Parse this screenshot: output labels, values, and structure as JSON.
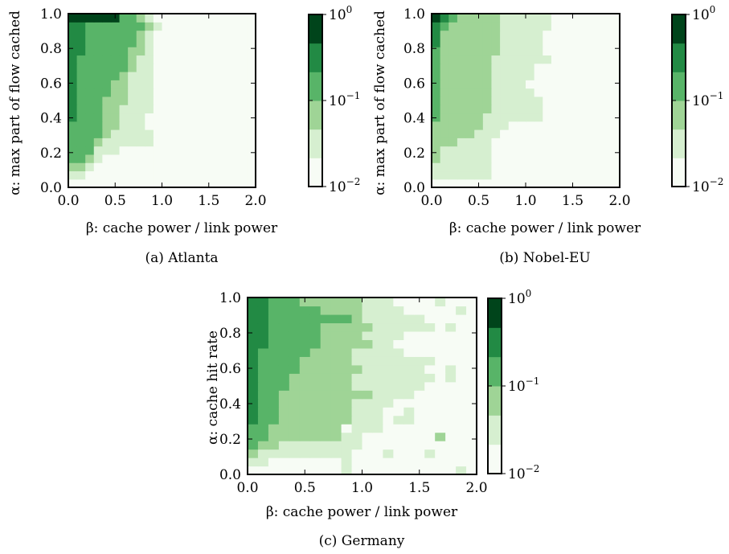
{
  "colors": {
    "scale": [
      "#f7fcf5",
      "#d6efd0",
      "#9fd496",
      "#58b468",
      "#228a44",
      "#00441b"
    ],
    "axis": "#000000"
  },
  "chart_data": [
    {
      "type": "heatmap",
      "caption": "(a) Atlanta",
      "xlabel": "β: cache power / link power",
      "ylabel": "α: max part of flow cached",
      "xlim": [
        0,
        2.0
      ],
      "ylim": [
        0,
        1.0
      ],
      "xticks": [
        "0.0",
        "0.5",
        "1.0",
        "1.5",
        "2.0"
      ],
      "yticks": [
        "0.0",
        "0.2",
        "0.4",
        "0.6",
        "0.8",
        "1.0"
      ],
      "grid": false,
      "colorbar": {
        "scale": "log",
        "min": "10^-2",
        "max": "10^0",
        "ticks": [
          {
            "base": "10",
            "exp": "0"
          },
          {
            "base": "10",
            "exp": "−1"
          },
          {
            "base": "10",
            "exp": "−2"
          }
        ]
      },
      "levels_bottom_to_top_rows": [
        "0000000000000000000000",
        "1100000000000000000000",
        "2210000000000000000000",
        "3321000000000000000000",
        "3331110000000000000000",
        "3332111111000000000000",
        "3333211111000000000000",
        "3333221110000000000000",
        "4333221110000000000000",
        "4333221111000000000000",
        "4333222111000000000000",
        "4333322111000000000000",
        "4333322111000000000000",
        "4333332111000000000000",
        "4333333211000000000000",
        "4333333211000000000000",
        "4433333221000000000000",
        "4433333321000000000000",
        "4433333321000000000000",
        "4433333332100000000000",
        "5555553321000000000000"
      ]
    },
    {
      "type": "heatmap",
      "caption": "(b) Nobel-EU",
      "xlabel": "β: cache power / link power",
      "ylabel": "α: max part of flow cached",
      "xlim": [
        0,
        2.0
      ],
      "ylim": [
        0,
        1.0
      ],
      "xticks": [
        "0.0",
        "0.5",
        "1.0",
        "1.5",
        "2.0"
      ],
      "yticks": [
        "0.0",
        "0.2",
        "0.4",
        "0.6",
        "0.8",
        "1.0"
      ],
      "grid": false,
      "colorbar": {
        "scale": "log",
        "min": "10^-2",
        "max": "10^0",
        "ticks": [
          {
            "base": "10",
            "exp": "0"
          },
          {
            "base": "10",
            "exp": "−1"
          },
          {
            "base": "10",
            "exp": "−2"
          }
        ]
      },
      "levels_bottom_to_top_rows": [
        "0000000000000000000000",
        "1111111000000000000000",
        "1111111000000000000000",
        "2111111000000000000000",
        "2111111000000000000000",
        "2221111000000000000000",
        "2222211100000000000000",
        "2222221110000000000000",
        "3222221111111000000000",
        "3222222111111000000000",
        "3222222111111000000000",
        "3222222111110000000000",
        "3222222111100000000000",
        "3222222111110000000000",
        "3222222111110000000000",
        "3222222111111100000000",
        "3222222211111000000000",
        "4222222211111000000000",
        "4222222211111000000000",
        "4322222211111100000000",
        "5432222211111100000000"
      ]
    },
    {
      "type": "heatmap",
      "caption": "(c) Germany",
      "xlabel": "β: cache power / link power",
      "ylabel": "α: cache hit rate",
      "xlim": [
        0,
        2.0
      ],
      "ylim": [
        0,
        1.0
      ],
      "xticks": [
        "0.0",
        "0.5",
        "1.0",
        "1.5",
        "2.0"
      ],
      "yticks": [
        "0.0",
        "0.2",
        "0.4",
        "0.6",
        "0.8",
        "1.0"
      ],
      "grid": false,
      "colorbar": {
        "scale": "log",
        "min": "10^-2",
        "max": "10^0",
        "ticks": [
          {
            "base": "10",
            "exp": "0"
          },
          {
            "base": "10",
            "exp": "−1"
          },
          {
            "base": "10",
            "exp": "−2"
          }
        ]
      },
      "levels_bottom_to_top_rows": [
        "0000000001000000000010",
        "1100000001000000000000",
        "2111111111000100010000",
        "3221111111100000000000",
        "3322222221100000002000",
        "3322222220111000000000",
        "4332222222111011000000",
        "4332222222111001000000",
        "4332222222111100000000",
        "4332222222221111000000",
        "4333222222111111100000",
        "4333222222111111110100",
        "4333322222211111100100",
        "4333322222111111110000",
        "4333332222111110000000",
        "4433333222221100000000",
        "4433333222211110000000",
        "4433333222221111110100",
        "4433333333211111100000",
        "4433333222211110000010",
        "4433322222211100001000"
      ]
    }
  ]
}
